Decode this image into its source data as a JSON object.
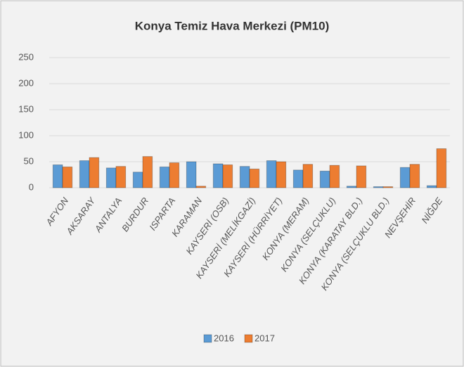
{
  "chart_data": {
    "type": "bar",
    "title": "Konya Temiz Hava Merkezi (PM10)",
    "categories": [
      "AFYON",
      "AKSARAY",
      "ANTALYA",
      "BURDUR",
      "ISPARTA",
      "KARAMAN",
      "KAYSERİ (OSB)",
      "KAYSERİ (MELİKGAZİ)",
      "KAYSERİ (HÜRRİYET)",
      "KONYA (MERAM)",
      "KONYA (SELÇUKLU)",
      "KONYA (KARATAY BLD.)",
      "KONYA (SELÇUKLU BLD.)",
      "NEVŞEHİR",
      "NİĞDE"
    ],
    "series": [
      {
        "name": "2016",
        "color": "#5b9bd5",
        "values": [
          44,
          52,
          38,
          30,
          40,
          50,
          46,
          41,
          52,
          34,
          32,
          3,
          2,
          39,
          4
        ]
      },
      {
        "name": "2017",
        "color": "#ed7d31",
        "values": [
          40,
          58,
          41,
          60,
          48,
          3,
          44,
          36,
          50,
          45,
          43,
          42,
          2,
          45,
          75
        ]
      }
    ],
    "ylim": [
      0,
      250
    ],
    "yticks": [
      0,
      50,
      100,
      150,
      200,
      250
    ],
    "grid": true,
    "legend": "bottom"
  }
}
